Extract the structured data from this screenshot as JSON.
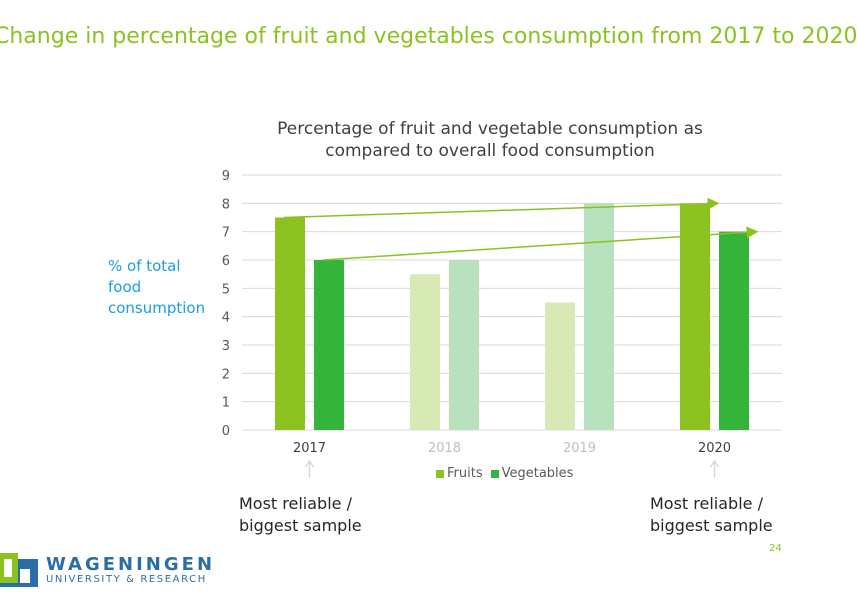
{
  "slide": {
    "title": "Change in percentage of fruit and vegetables consumption from 2017 to 2020",
    "page_number": "24"
  },
  "logo": {
    "name": "WAGENINGEN",
    "subtitle": "UNIVERSITY & RESEARCH",
    "colors": {
      "green": "#8cc21f",
      "blue": "#2a6ea8"
    }
  },
  "notes": {
    "left": [
      "Most reliable /",
      "biggest sample"
    ],
    "right": [
      "Most reliable /",
      "biggest sample"
    ]
  },
  "chart_data": {
    "type": "bar",
    "title": "Percentage of fruit and vegetable consumption as compared to overall food consumption",
    "title_lines": [
      "Percentage of fruit and vegetable consumption as",
      "compared to overall food consumption"
    ],
    "ylabel": "% of total food consumption",
    "ylabel_lines": [
      "% of total",
      "food",
      "consumption"
    ],
    "xlabel": "",
    "categories": [
      "2017",
      "2018",
      "2019",
      "2020"
    ],
    "highlighted_categories": [
      "2017",
      "2020"
    ],
    "series": [
      {
        "name": "Fruits",
        "values": [
          7.5,
          5.5,
          4.5,
          8
        ],
        "color": "#8cc21f",
        "faded_color": "#d7e9b5"
      },
      {
        "name": "Vegetables",
        "values": [
          6,
          6,
          8,
          7
        ],
        "color": "#34b43a",
        "faded_color": "#b8e2be"
      }
    ],
    "ylim": [
      0,
      9
    ],
    "yticks": [
      0,
      1,
      2,
      3,
      4,
      5,
      6,
      7,
      8,
      9
    ],
    "grid": true,
    "legend": "bottom",
    "annotations": [
      {
        "type": "arrow",
        "from": {
          "category": "2017",
          "series": "Fruits"
        },
        "to": {
          "category": "2020",
          "series": "Fruits"
        }
      },
      {
        "type": "arrow",
        "from": {
          "category": "2017",
          "series": "Vegetables"
        },
        "to": {
          "category": "2020",
          "series": "Vegetables"
        }
      }
    ]
  }
}
